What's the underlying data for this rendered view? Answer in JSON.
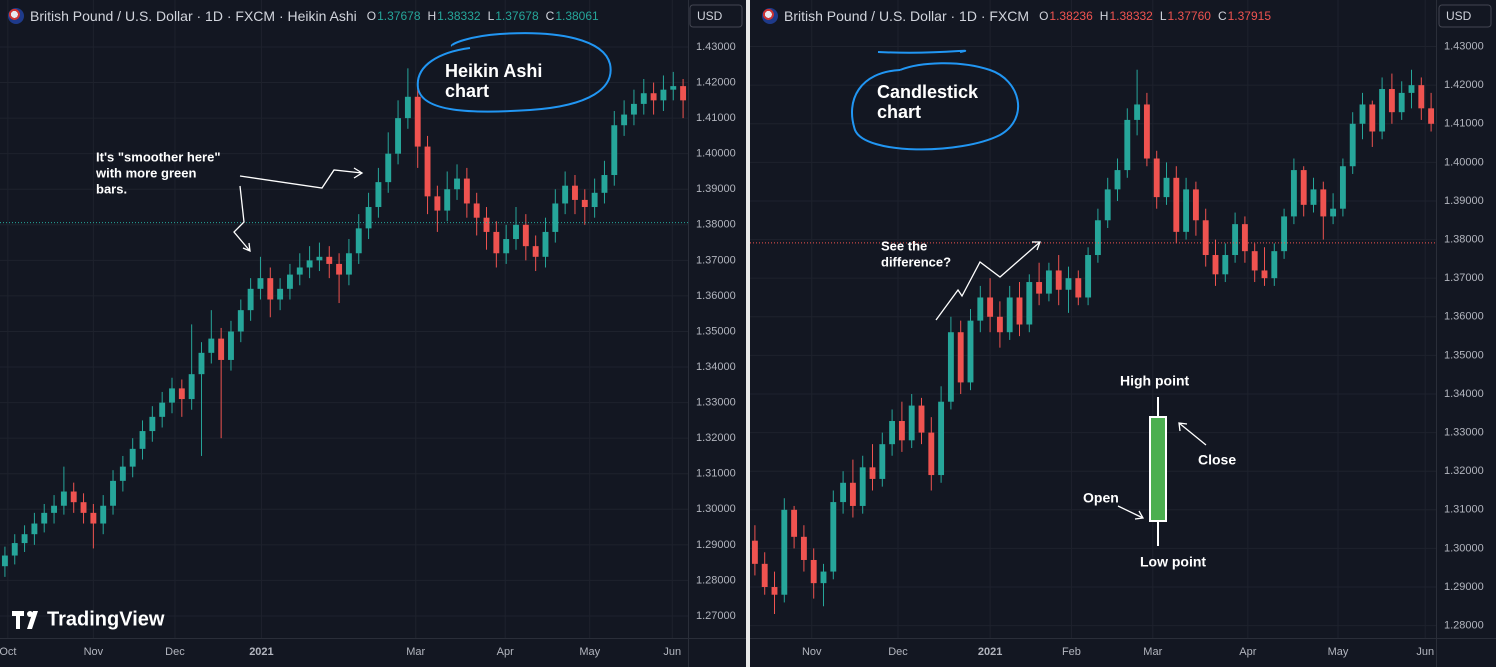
{
  "chart_data": [
    {
      "type": "candlestick",
      "title": "British Pound / U.S. Dollar · 1D · FXCM · Heikin Ashi",
      "readout": [
        {
          "name": "O",
          "value": 1.37678,
          "label": "1.37678"
        },
        {
          "name": "H",
          "value": 1.38332,
          "label": "1.38332"
        },
        {
          "name": "L",
          "value": 1.37678,
          "label": "1.37678"
        },
        {
          "name": "C",
          "value": 1.38061,
          "label": "1.38061"
        }
      ],
      "currency": "USD",
      "up_color": "#26a69a",
      "down_color": "#ef5350",
      "xlim": [
        0,
        70
      ],
      "xticks": [
        {
          "value": 0.8,
          "label": "Oct"
        },
        {
          "value": 9.5,
          "label": "Nov"
        },
        {
          "value": 17.8,
          "label": "Dec"
        },
        {
          "value": 26.6,
          "label": "2021"
        },
        {
          "value": 42.3,
          "label": "Mar"
        },
        {
          "value": 51.4,
          "label": "Apr"
        },
        {
          "value": 60,
          "label": "May"
        },
        {
          "value": 68.4,
          "label": "Jun"
        }
      ],
      "ylim": [
        1.26381,
        1.43478
      ],
      "yticks": [
        {
          "value": 1.43,
          "label": "1.43000"
        },
        {
          "value": 1.42,
          "label": "1.42000"
        },
        {
          "value": 1.41,
          "label": "1.41000"
        },
        {
          "value": 1.4,
          "label": "1.40000"
        },
        {
          "value": 1.39,
          "label": "1.39000"
        },
        {
          "value": 1.38,
          "label": "1.38000"
        },
        {
          "value": 1.37,
          "label": "1.37000"
        },
        {
          "value": 1.36,
          "label": "1.36000"
        },
        {
          "value": 1.35,
          "label": "1.35000"
        },
        {
          "value": 1.34,
          "label": "1.34000"
        },
        {
          "value": 1.33,
          "label": "1.33000"
        },
        {
          "value": 1.32,
          "label": "1.32000"
        },
        {
          "value": 1.31,
          "label": "1.31000"
        },
        {
          "value": 1.3,
          "label": "1.30000"
        },
        {
          "value": 1.29,
          "label": "1.29000"
        },
        {
          "value": 1.28,
          "label": "1.28000"
        },
        {
          "value": 1.27,
          "label": "1.27000"
        }
      ],
      "candles": [
        [
          1.284,
          1.2895,
          1.281,
          1.287
        ],
        [
          1.287,
          1.293,
          1.2845,
          1.2905
        ],
        [
          1.2905,
          1.2955,
          1.288,
          1.293
        ],
        [
          1.293,
          1.299,
          1.29,
          1.296
        ],
        [
          1.296,
          1.3015,
          1.2935,
          1.299
        ],
        [
          1.299,
          1.304,
          1.296,
          1.301
        ],
        [
          1.301,
          1.312,
          1.2985,
          1.305
        ],
        [
          1.305,
          1.3075,
          1.299,
          1.302
        ],
        [
          1.302,
          1.3045,
          1.296,
          1.299
        ],
        [
          1.299,
          1.3015,
          1.289,
          1.296
        ],
        [
          1.296,
          1.304,
          1.293,
          1.301
        ],
        [
          1.301,
          1.311,
          1.2985,
          1.308
        ],
        [
          1.308,
          1.315,
          1.305,
          1.312
        ],
        [
          1.312,
          1.32,
          1.309,
          1.317
        ],
        [
          1.317,
          1.325,
          1.314,
          1.322
        ],
        [
          1.322,
          1.329,
          1.319,
          1.326
        ],
        [
          1.326,
          1.333,
          1.323,
          1.33
        ],
        [
          1.33,
          1.337,
          1.327,
          1.334
        ],
        [
          1.334,
          1.3365,
          1.326,
          1.331
        ],
        [
          1.331,
          1.352,
          1.328,
          1.338
        ],
        [
          1.338,
          1.347,
          1.315,
          1.344
        ],
        [
          1.344,
          1.356,
          1.341,
          1.348
        ],
        [
          1.348,
          1.351,
          1.32,
          1.342
        ],
        [
          1.342,
          1.353,
          1.339,
          1.35
        ],
        [
          1.35,
          1.359,
          1.347,
          1.356
        ],
        [
          1.356,
          1.365,
          1.353,
          1.362
        ],
        [
          1.362,
          1.371,
          1.359,
          1.365
        ],
        [
          1.365,
          1.368,
          1.354,
          1.359
        ],
        [
          1.359,
          1.365,
          1.356,
          1.362
        ],
        [
          1.362,
          1.369,
          1.359,
          1.366
        ],
        [
          1.366,
          1.372,
          1.363,
          1.368
        ],
        [
          1.368,
          1.374,
          1.365,
          1.37
        ],
        [
          1.37,
          1.375,
          1.367,
          1.371
        ],
        [
          1.371,
          1.374,
          1.365,
          1.369
        ],
        [
          1.369,
          1.372,
          1.358,
          1.366
        ],
        [
          1.366,
          1.376,
          1.363,
          1.372
        ],
        [
          1.372,
          1.383,
          1.369,
          1.379
        ],
        [
          1.379,
          1.389,
          1.376,
          1.385
        ],
        [
          1.385,
          1.396,
          1.382,
          1.392
        ],
        [
          1.392,
          1.406,
          1.389,
          1.4
        ],
        [
          1.4,
          1.415,
          1.397,
          1.41
        ],
        [
          1.41,
          1.424,
          1.407,
          1.416
        ],
        [
          1.416,
          1.419,
          1.396,
          1.402
        ],
        [
          1.402,
          1.405,
          1.383,
          1.388
        ],
        [
          1.388,
          1.391,
          1.378,
          1.384
        ],
        [
          1.384,
          1.395,
          1.381,
          1.39
        ],
        [
          1.39,
          1.397,
          1.387,
          1.393
        ],
        [
          1.393,
          1.396,
          1.382,
          1.386
        ],
        [
          1.386,
          1.389,
          1.377,
          1.382
        ],
        [
          1.382,
          1.385,
          1.373,
          1.378
        ],
        [
          1.378,
          1.381,
          1.368,
          1.372
        ],
        [
          1.372,
          1.38,
          1.369,
          1.376
        ],
        [
          1.376,
          1.385,
          1.373,
          1.38
        ],
        [
          1.38,
          1.383,
          1.37,
          1.374
        ],
        [
          1.374,
          1.377,
          1.367,
          1.371
        ],
        [
          1.371,
          1.382,
          1.368,
          1.378
        ],
        [
          1.378,
          1.39,
          1.375,
          1.386
        ],
        [
          1.386,
          1.395,
          1.383,
          1.391
        ],
        [
          1.391,
          1.394,
          1.383,
          1.387
        ],
        [
          1.387,
          1.39,
          1.38,
          1.385
        ],
        [
          1.385,
          1.393,
          1.382,
          1.389
        ],
        [
          1.389,
          1.398,
          1.386,
          1.394
        ],
        [
          1.394,
          1.412,
          1.391,
          1.408
        ],
        [
          1.408,
          1.415,
          1.405,
          1.411
        ],
        [
          1.411,
          1.418,
          1.408,
          1.414
        ],
        [
          1.414,
          1.421,
          1.411,
          1.417
        ],
        [
          1.417,
          1.42,
          1.411,
          1.415
        ],
        [
          1.415,
          1.422,
          1.412,
          1.418
        ],
        [
          1.418,
          1.423,
          1.415,
          1.419
        ],
        [
          1.419,
          1.421,
          1.41,
          1.415
        ]
      ],
      "label_box": [
        "Heikin Ashi",
        "chart"
      ],
      "note": [
        "It's \"smoother here\"",
        "with more green",
        "bars."
      ],
      "watermark": "TradingView"
    },
    {
      "type": "candlestick",
      "title": "British Pound / U.S. Dollar · 1D · FXCM",
      "readout": [
        {
          "name": "O",
          "value": 1.38236,
          "label": "1.38236"
        },
        {
          "name": "H",
          "value": 1.38332,
          "label": "1.38332"
        },
        {
          "name": "L",
          "value": 1.3776,
          "label": "1.37760"
        },
        {
          "name": "C",
          "value": 1.37915,
          "label": "1.37915"
        }
      ],
      "currency": "USD",
      "up_color": "#26a69a",
      "down_color": "#ef5350",
      "xlim": [
        0,
        70
      ],
      "xticks": [
        {
          "value": 6.3,
          "label": "Nov"
        },
        {
          "value": 15.1,
          "label": "Dec"
        },
        {
          "value": 24.5,
          "label": "2021"
        },
        {
          "value": 32.8,
          "label": "Feb"
        },
        {
          "value": 41.1,
          "label": "Mar"
        },
        {
          "value": 50.8,
          "label": "Apr"
        },
        {
          "value": 60,
          "label": "May"
        },
        {
          "value": 68.9,
          "label": "Jun"
        }
      ],
      "ylim": [
        1.27679,
        1.43429
      ],
      "yticks": [
        {
          "value": 1.43,
          "label": "1.43000"
        },
        {
          "value": 1.42,
          "label": "1.42000"
        },
        {
          "value": 1.41,
          "label": "1.41000"
        },
        {
          "value": 1.4,
          "label": "1.40000"
        },
        {
          "value": 1.39,
          "label": "1.39000"
        },
        {
          "value": 1.38,
          "label": "1.38000"
        },
        {
          "value": 1.37,
          "label": "1.37000"
        },
        {
          "value": 1.36,
          "label": "1.36000"
        },
        {
          "value": 1.35,
          "label": "1.35000"
        },
        {
          "value": 1.34,
          "label": "1.34000"
        },
        {
          "value": 1.33,
          "label": "1.33000"
        },
        {
          "value": 1.32,
          "label": "1.32000"
        },
        {
          "value": 1.31,
          "label": "1.31000"
        },
        {
          "value": 1.3,
          "label": "1.30000"
        },
        {
          "value": 1.29,
          "label": "1.29000"
        },
        {
          "value": 1.28,
          "label": "1.28000"
        }
      ],
      "candles": [
        [
          1.302,
          1.306,
          1.293,
          1.296
        ],
        [
          1.296,
          1.299,
          1.288,
          1.29
        ],
        [
          1.29,
          1.294,
          1.283,
          1.288
        ],
        [
          1.288,
          1.313,
          1.286,
          1.31
        ],
        [
          1.31,
          1.311,
          1.3,
          1.303
        ],
        [
          1.303,
          1.306,
          1.294,
          1.297
        ],
        [
          1.297,
          1.3,
          1.287,
          1.291
        ],
        [
          1.291,
          1.296,
          1.285,
          1.294
        ],
        [
          1.294,
          1.315,
          1.292,
          1.312
        ],
        [
          1.312,
          1.32,
          1.309,
          1.317
        ],
        [
          1.317,
          1.323,
          1.308,
          1.311
        ],
        [
          1.311,
          1.324,
          1.309,
          1.321
        ],
        [
          1.321,
          1.327,
          1.315,
          1.318
        ],
        [
          1.318,
          1.33,
          1.316,
          1.327
        ],
        [
          1.327,
          1.336,
          1.324,
          1.333
        ],
        [
          1.333,
          1.338,
          1.325,
          1.328
        ],
        [
          1.328,
          1.34,
          1.326,
          1.337
        ],
        [
          1.337,
          1.339,
          1.327,
          1.33
        ],
        [
          1.33,
          1.334,
          1.315,
          1.319
        ],
        [
          1.319,
          1.342,
          1.317,
          1.338
        ],
        [
          1.338,
          1.36,
          1.336,
          1.356
        ],
        [
          1.356,
          1.359,
          1.34,
          1.343
        ],
        [
          1.343,
          1.362,
          1.341,
          1.359
        ],
        [
          1.359,
          1.368,
          1.356,
          1.365
        ],
        [
          1.365,
          1.37,
          1.356,
          1.36
        ],
        [
          1.36,
          1.364,
          1.352,
          1.356
        ],
        [
          1.356,
          1.368,
          1.354,
          1.365
        ],
        [
          1.365,
          1.369,
          1.355,
          1.358
        ],
        [
          1.358,
          1.371,
          1.356,
          1.369
        ],
        [
          1.369,
          1.374,
          1.363,
          1.366
        ],
        [
          1.366,
          1.374,
          1.364,
          1.372
        ],
        [
          1.372,
          1.376,
          1.363,
          1.367
        ],
        [
          1.367,
          1.373,
          1.361,
          1.37
        ],
        [
          1.37,
          1.372,
          1.363,
          1.365
        ],
        [
          1.365,
          1.378,
          1.363,
          1.376
        ],
        [
          1.376,
          1.388,
          1.374,
          1.385
        ],
        [
          1.385,
          1.396,
          1.383,
          1.393
        ],
        [
          1.393,
          1.401,
          1.39,
          1.398
        ],
        [
          1.398,
          1.414,
          1.396,
          1.411
        ],
        [
          1.411,
          1.424,
          1.407,
          1.415
        ],
        [
          1.415,
          1.418,
          1.399,
          1.401
        ],
        [
          1.401,
          1.403,
          1.388,
          1.391
        ],
        [
          1.391,
          1.4,
          1.389,
          1.396
        ],
        [
          1.396,
          1.399,
          1.379,
          1.382
        ],
        [
          1.382,
          1.396,
          1.38,
          1.393
        ],
        [
          1.393,
          1.395,
          1.381,
          1.385
        ],
        [
          1.385,
          1.388,
          1.373,
          1.376
        ],
        [
          1.376,
          1.38,
          1.368,
          1.371
        ],
        [
          1.371,
          1.379,
          1.369,
          1.376
        ],
        [
          1.376,
          1.387,
          1.374,
          1.384
        ],
        [
          1.384,
          1.386,
          1.374,
          1.377
        ],
        [
          1.377,
          1.379,
          1.369,
          1.372
        ],
        [
          1.372,
          1.378,
          1.368,
          1.37
        ],
        [
          1.37,
          1.379,
          1.368,
          1.377
        ],
        [
          1.377,
          1.388,
          1.375,
          1.386
        ],
        [
          1.386,
          1.401,
          1.384,
          1.398
        ],
        [
          1.398,
          1.399,
          1.386,
          1.389
        ],
        [
          1.389,
          1.396,
          1.387,
          1.393
        ],
        [
          1.393,
          1.395,
          1.38,
          1.386
        ],
        [
          1.386,
          1.392,
          1.384,
          1.388
        ],
        [
          1.388,
          1.401,
          1.386,
          1.399
        ],
        [
          1.399,
          1.413,
          1.397,
          1.41
        ],
        [
          1.41,
          1.418,
          1.406,
          1.415
        ],
        [
          1.415,
          1.416,
          1.404,
          1.408
        ],
        [
          1.408,
          1.422,
          1.406,
          1.419
        ],
        [
          1.419,
          1.423,
          1.41,
          1.413
        ],
        [
          1.413,
          1.421,
          1.411,
          1.418
        ],
        [
          1.418,
          1.424,
          1.414,
          1.42
        ],
        [
          1.42,
          1.422,
          1.411,
          1.414
        ],
        [
          1.414,
          1.418,
          1.408,
          1.41
        ]
      ],
      "label_box": [
        "Candlestick",
        "chart"
      ],
      "note": [
        "See the",
        "difference?"
      ],
      "diagram": {
        "high": "High point",
        "close": "Close",
        "open": "Open",
        "low": "Low point"
      }
    }
  ]
}
